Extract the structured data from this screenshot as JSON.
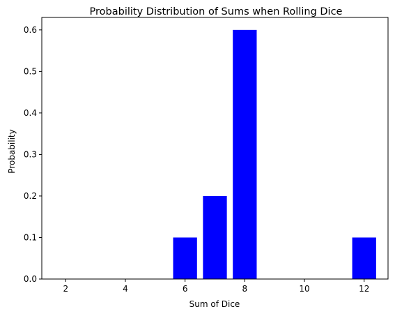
{
  "chart_data": {
    "type": "bar",
    "title": "Probability Distribution of Sums when Rolling Dice",
    "xlabel": "Sum of Dice",
    "ylabel": "Probability",
    "x": [
      6,
      7,
      8,
      12
    ],
    "values": [
      0.1,
      0.2,
      0.6,
      0.1
    ],
    "bar_width": 0.8,
    "xlim": [
      1.2,
      12.8
    ],
    "ylim": [
      0,
      0.63
    ],
    "xticks": [
      2,
      4,
      6,
      8,
      10,
      12
    ],
    "yticks": [
      0.0,
      0.1,
      0.2,
      0.3,
      0.4,
      0.5,
      0.6
    ],
    "ytick_labels": [
      "0.0",
      "0.1",
      "0.2",
      "0.3",
      "0.4",
      "0.5",
      "0.6"
    ],
    "bar_color": "#0000ff",
    "grid": false,
    "legend": "none"
  }
}
